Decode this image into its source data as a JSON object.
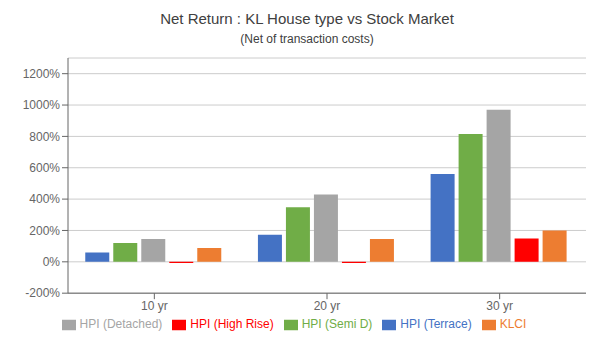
{
  "chart_data": {
    "type": "bar",
    "title": "Net Return : KL House type vs Stock Market",
    "subtitle": "(Net of transaction costs)",
    "categories": [
      "10 yr",
      "20 yr",
      "30 yr"
    ],
    "series": [
      {
        "name": "HPI (Terrace)",
        "color": "#4472C4",
        "values": [
          0.6,
          1.72,
          5.6
        ]
      },
      {
        "name": "HPI (Semi D)",
        "color": "#70AD47",
        "values": [
          1.2,
          3.48,
          8.15
        ]
      },
      {
        "name": "HPI (Detached)",
        "color": "#A5A5A5",
        "values": [
          1.45,
          4.3,
          9.7
        ]
      },
      {
        "name": "HPI (High Rise)",
        "color": "#FF0000",
        "values": [
          -0.08,
          -0.08,
          1.48
        ]
      },
      {
        "name": "KLCI",
        "color": "#ED7D31",
        "values": [
          0.88,
          1.45,
          2.0
        ]
      }
    ],
    "ylim": [
      -2.0,
      13.0
    ],
    "yticks": [
      {
        "value": -2.0,
        "label": "-200%"
      },
      {
        "value": 0.0,
        "label": "0%"
      },
      {
        "value": 2.0,
        "label": "200%"
      },
      {
        "value": 4.0,
        "label": "400%"
      },
      {
        "value": 6.0,
        "label": "600%"
      },
      {
        "value": 8.0,
        "label": "800%"
      },
      {
        "value": 10.0,
        "label": "1000%"
      },
      {
        "value": 12.0,
        "label": "1200%"
      }
    ],
    "grid": true,
    "legend": "bottom"
  }
}
